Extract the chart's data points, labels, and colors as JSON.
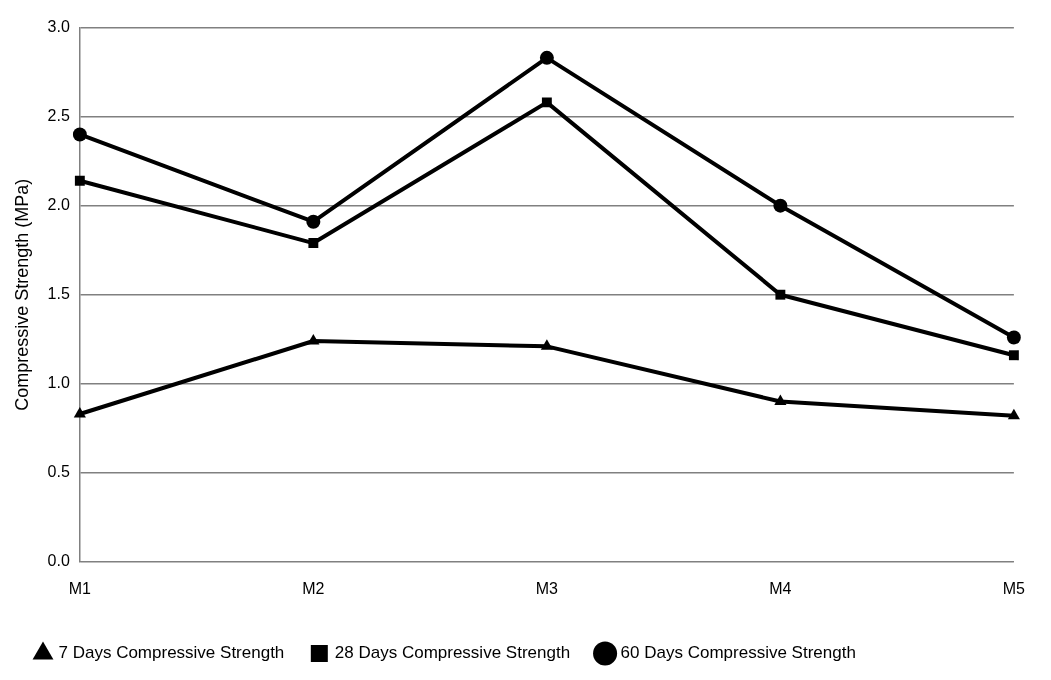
{
  "chart_data": {
    "type": "line",
    "ylabel": "Compressive Strength (MPa)",
    "categories": [
      "M1",
      "M2",
      "M3",
      "M4",
      "M5"
    ],
    "series": [
      {
        "name": "7 Days Compressive Strength",
        "color": "#000000",
        "marker": "triangle",
        "values": [
          0.83,
          1.24,
          1.21,
          0.9,
          0.82
        ]
      },
      {
        "name": "28 Days Compressive Strength",
        "color": "#000000",
        "marker": "square",
        "values": [
          2.14,
          1.79,
          2.58,
          1.5,
          1.16
        ]
      },
      {
        "name": "60 Days Compressive Strength",
        "color": "#000000",
        "marker": "circle",
        "values": [
          2.4,
          1.91,
          2.83,
          2.0,
          1.26
        ]
      }
    ],
    "ylim": [
      0,
      3
    ],
    "yticks": [
      {
        "value": 0,
        "label": "0.0"
      },
      {
        "value": 0.5,
        "label": "0.5"
      },
      {
        "value": 1,
        "label": "1.0"
      },
      {
        "value": 1.5,
        "label": "1.5"
      },
      {
        "value": 2,
        "label": "2.0"
      },
      {
        "value": 2.5,
        "label": "2.5"
      },
      {
        "value": 3,
        "label": "3.0"
      }
    ],
    "grid": "y",
    "legend": "bottom",
    "line_style": "solid"
  }
}
